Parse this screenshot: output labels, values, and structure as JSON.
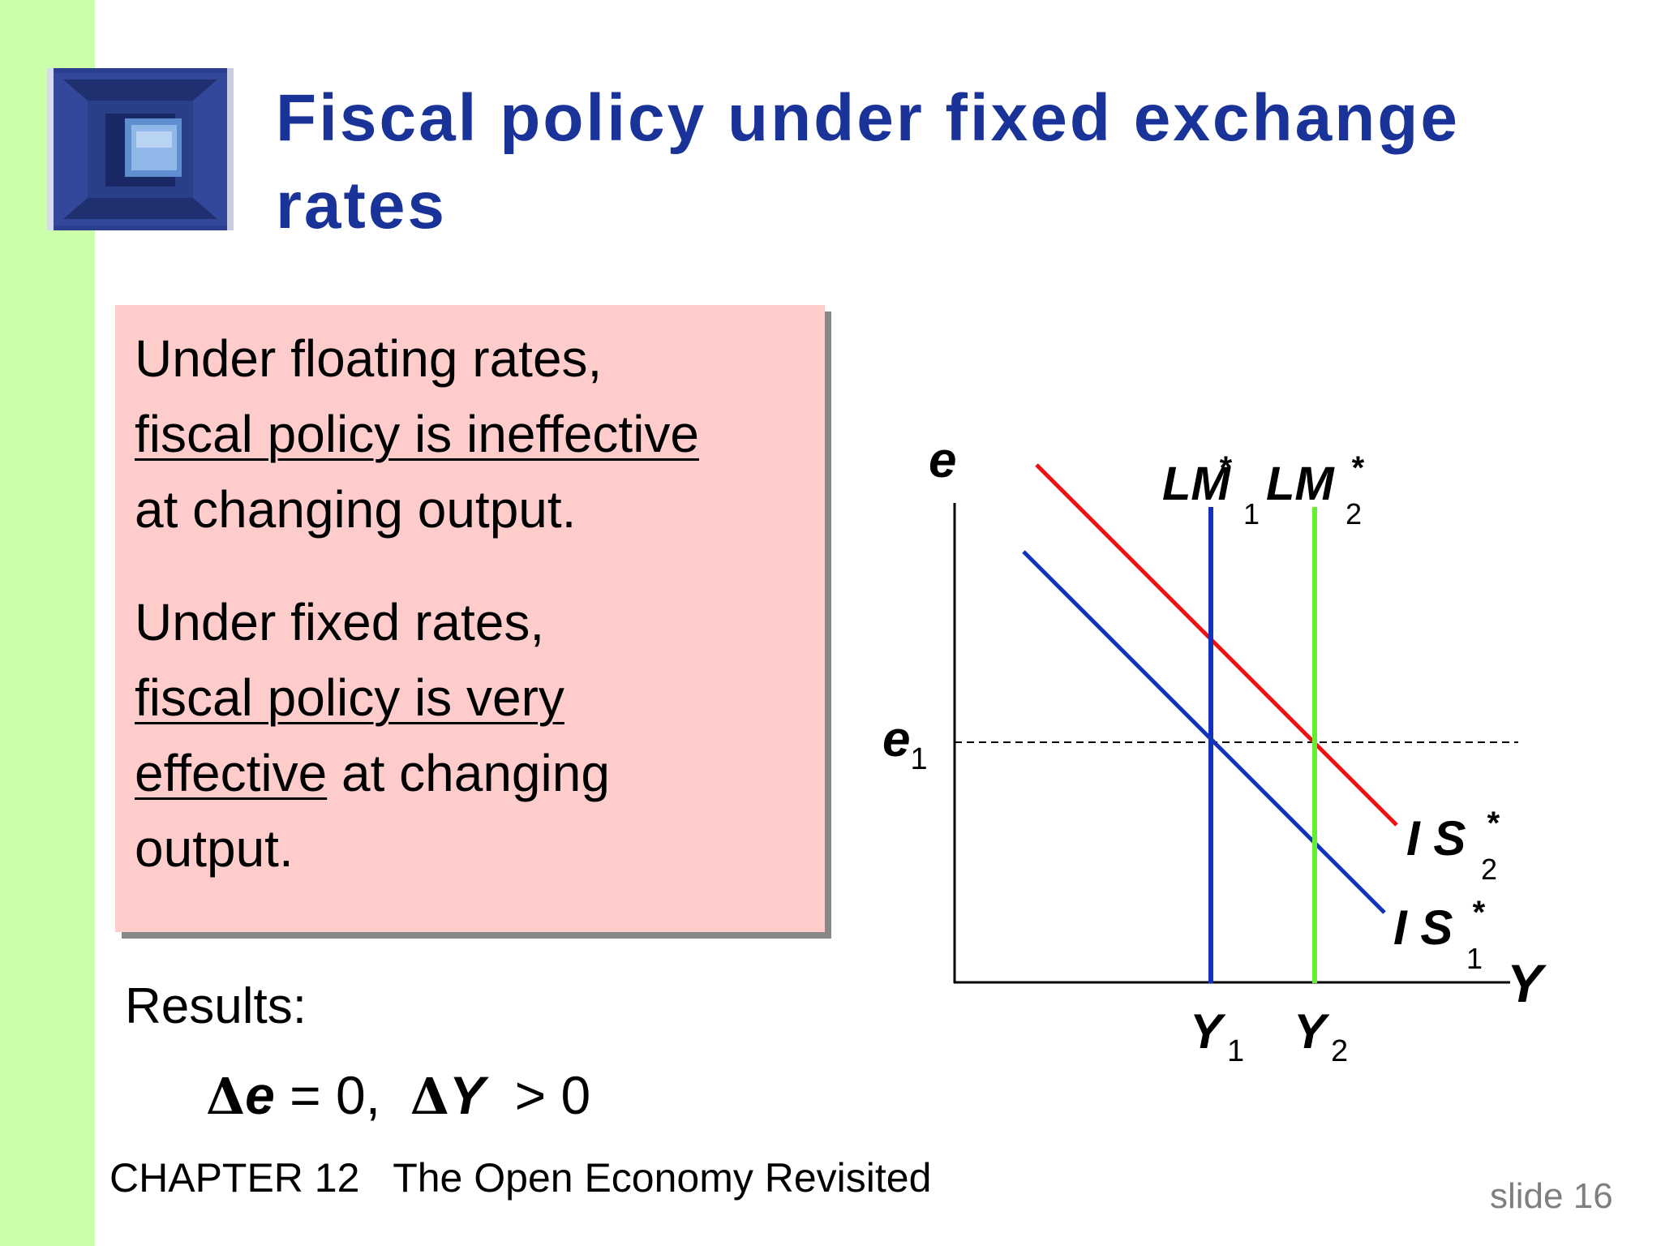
{
  "slide": {
    "title": "Fiscal policy under fixed exchange rates",
    "box": {
      "para1": {
        "line1": "Under floating rates,",
        "underlined": "fiscal policy is ineffective",
        "line3": "at changing output."
      },
      "para2": {
        "line1": "Under fixed rates,",
        "underlined1": "fiscal policy is very",
        "underlined2": "effective",
        "tail2": " at changing",
        "line4": "output."
      }
    },
    "results": {
      "label": "Results:",
      "delta1": "Δ",
      "var1": "e",
      "part1": " = 0,  ",
      "delta2": "Δ",
      "var2": "Y",
      "part2": "  > 0"
    },
    "footer": "CHAPTER 12   The Open Economy Revisited",
    "slide_number": "slide 16",
    "colors": {
      "title": "#1a3399",
      "sidebar": "#ccffaa",
      "box": "#ffcccc",
      "is1": "#1133bb",
      "is2": "#ee1111",
      "lm1": "#1133bb",
      "lm2": "#66ee33"
    }
  },
  "diagram": {
    "y_axis_label": "e",
    "x_axis_label": "Y",
    "e1_main": "e",
    "e1_sub": "1",
    "lm1_main": "LM",
    "lm1_sup": "*",
    "lm1_sub": "1",
    "lm2_main": "LM",
    "lm2_sup": "*",
    "lm2_sub": "2",
    "is1_main": "I S",
    "is1_sup": "*",
    "is1_sub": "1",
    "is2_main": "I S",
    "is2_sup": "*",
    "is2_sub": "2",
    "y1_main": "Y",
    "y1_sub": "1",
    "y2_main": "Y",
    "y2_sub": "2"
  }
}
